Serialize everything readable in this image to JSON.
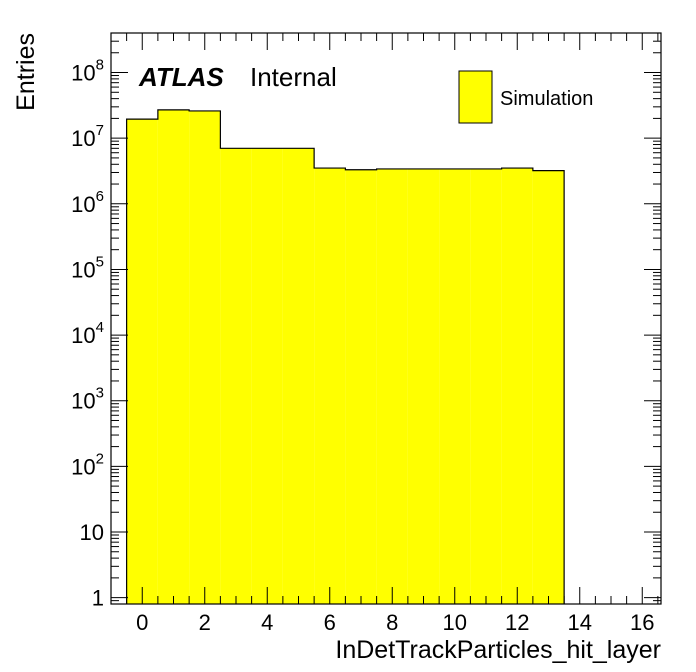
{
  "chart_data": {
    "type": "bar",
    "histogram": true,
    "xlabel": "InDetTrackParticles_hit_layer",
    "ylabel": "Entries",
    "xlim": [
      -1,
      16.6
    ],
    "ylim": [
      0.8,
      400000000
    ],
    "yscale": "log",
    "x_ticks": [
      0,
      2,
      4,
      6,
      8,
      10,
      12,
      14,
      16
    ],
    "y_ticks": [
      {
        "value": 1,
        "base": "1",
        "exp": ""
      },
      {
        "value": 10,
        "base": "10",
        "exp": ""
      },
      {
        "value": 100,
        "base": "10",
        "exp": "2"
      },
      {
        "value": 1000,
        "base": "10",
        "exp": "3"
      },
      {
        "value": 10000,
        "base": "10",
        "exp": "4"
      },
      {
        "value": 100000,
        "base": "10",
        "exp": "5"
      },
      {
        "value": 1000000,
        "base": "10",
        "exp": "6"
      },
      {
        "value": 10000000,
        "base": "10",
        "exp": "7"
      },
      {
        "value": 100000000,
        "base": "10",
        "exp": "8"
      }
    ],
    "bin_edges": [
      -0.5,
      0.5,
      1.5,
      2.5,
      3.5,
      4.5,
      5.5,
      6.5,
      7.5,
      8.5,
      9.5,
      10.5,
      11.5,
      12.5,
      13.5
    ],
    "values": [
      19500000,
      27000000,
      26000000,
      7000000,
      7000000,
      7000000,
      3500000,
      3300000,
      3400000,
      3400000,
      3400000,
      3400000,
      3500000,
      3200000
    ],
    "fill_color": "#ffff00",
    "line_color": "#000000",
    "legend": {
      "label": "Simulation",
      "position": "top-right"
    },
    "annotation": {
      "atlas": "ATLAS",
      "label": "Internal"
    }
  }
}
